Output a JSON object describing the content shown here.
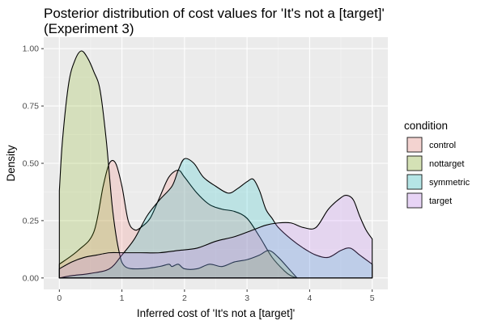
{
  "chart_data": {
    "type": "area",
    "title_lines": [
      "Posterior distribution of cost values for 'It's not a [target]'",
      "(Experiment 3)"
    ],
    "xlabel": "Inferred cost of 'It's not a [target]'",
    "ylabel": "Density",
    "xlim": [
      -0.25,
      5.25
    ],
    "ylim": [
      -0.05,
      1.05
    ],
    "x_ticks": [
      0,
      1,
      2,
      3,
      4,
      5
    ],
    "y_ticks": [
      0.0,
      0.25,
      0.5,
      0.75,
      1.0
    ],
    "x_tick_labels": [
      "0",
      "1",
      "2",
      "3",
      "4",
      "5"
    ],
    "y_tick_labels": [
      "0.00",
      "0.25",
      "0.50",
      "0.75",
      "1.00"
    ],
    "grid": true,
    "legend": {
      "title": "condition",
      "position": "right"
    },
    "series": [
      {
        "name": "control",
        "color": "#F8766D",
        "points": [
          [
            0,
            0.06
          ],
          [
            0.3,
            0.12
          ],
          [
            0.55,
            0.2
          ],
          [
            0.7,
            0.4
          ],
          [
            0.8,
            0.5
          ],
          [
            0.9,
            0.5
          ],
          [
            1.0,
            0.4
          ],
          [
            1.1,
            0.25
          ],
          [
            1.2,
            0.21
          ],
          [
            1.3,
            0.22
          ],
          [
            1.45,
            0.26
          ],
          [
            1.6,
            0.35
          ],
          [
            1.75,
            0.44
          ],
          [
            1.9,
            0.47
          ],
          [
            2.0,
            0.44
          ],
          [
            2.2,
            0.37
          ],
          [
            2.4,
            0.32
          ],
          [
            2.6,
            0.3
          ],
          [
            2.8,
            0.29
          ],
          [
            3.0,
            0.26
          ],
          [
            3.2,
            0.18
          ],
          [
            3.4,
            0.09
          ],
          [
            3.6,
            0.03
          ],
          [
            3.7,
            0.01
          ],
          [
            3.8,
            0.0
          ]
        ]
      },
      {
        "name": "nottarget",
        "color": "#7CAE00",
        "points": [
          [
            0,
            0.38
          ],
          [
            0.05,
            0.6
          ],
          [
            0.15,
            0.85
          ],
          [
            0.25,
            0.95
          ],
          [
            0.35,
            0.99
          ],
          [
            0.45,
            0.96
          ],
          [
            0.55,
            0.9
          ],
          [
            0.65,
            0.82
          ],
          [
            0.75,
            0.6
          ],
          [
            0.85,
            0.3
          ],
          [
            0.95,
            0.12
          ],
          [
            1.05,
            0.05
          ],
          [
            1.3,
            0.04
          ],
          [
            1.6,
            0.05
          ],
          [
            1.75,
            0.06
          ],
          [
            1.8,
            0.05
          ],
          [
            1.9,
            0.06
          ],
          [
            2.0,
            0.04
          ],
          [
            2.2,
            0.04
          ],
          [
            2.4,
            0.06
          ],
          [
            2.6,
            0.05
          ],
          [
            2.8,
            0.07
          ],
          [
            3.0,
            0.08
          ],
          [
            3.2,
            0.1
          ],
          [
            3.35,
            0.12
          ],
          [
            3.5,
            0.09
          ],
          [
            3.7,
            0.03
          ],
          [
            3.8,
            0.0
          ]
        ]
      },
      {
        "name": "symmetric",
        "color": "#00BFC4",
        "points": [
          [
            0,
            0.0
          ],
          [
            0.2,
            0.01
          ],
          [
            0.5,
            0.02
          ],
          [
            0.8,
            0.04
          ],
          [
            1.0,
            0.1
          ],
          [
            1.2,
            0.17
          ],
          [
            1.4,
            0.27
          ],
          [
            1.6,
            0.34
          ],
          [
            1.8,
            0.4
          ],
          [
            1.9,
            0.47
          ],
          [
            2.0,
            0.52
          ],
          [
            2.15,
            0.5
          ],
          [
            2.3,
            0.44
          ],
          [
            2.5,
            0.4
          ],
          [
            2.7,
            0.37
          ],
          [
            2.85,
            0.39
          ],
          [
            3.0,
            0.42
          ],
          [
            3.1,
            0.43
          ],
          [
            3.2,
            0.38
          ],
          [
            3.3,
            0.3
          ],
          [
            3.4,
            0.26
          ],
          [
            3.5,
            0.22
          ],
          [
            3.7,
            0.17
          ],
          [
            3.9,
            0.13
          ],
          [
            4.1,
            0.1
          ],
          [
            4.3,
            0.09
          ],
          [
            4.5,
            0.12
          ],
          [
            4.65,
            0.13
          ],
          [
            4.8,
            0.1
          ],
          [
            4.95,
            0.07
          ],
          [
            5.0,
            0.06
          ]
        ]
      },
      {
        "name": "target",
        "color": "#C77CFF",
        "points": [
          [
            0,
            0.04
          ],
          [
            0.2,
            0.07
          ],
          [
            0.4,
            0.09
          ],
          [
            0.6,
            0.1
          ],
          [
            0.8,
            0.11
          ],
          [
            1.0,
            0.11
          ],
          [
            1.3,
            0.11
          ],
          [
            1.6,
            0.11
          ],
          [
            1.9,
            0.12
          ],
          [
            2.2,
            0.13
          ],
          [
            2.5,
            0.16
          ],
          [
            2.8,
            0.18
          ],
          [
            3.1,
            0.21
          ],
          [
            3.3,
            0.23
          ],
          [
            3.5,
            0.24
          ],
          [
            3.7,
            0.24
          ],
          [
            3.9,
            0.22
          ],
          [
            4.1,
            0.22
          ],
          [
            4.3,
            0.3
          ],
          [
            4.5,
            0.35
          ],
          [
            4.6,
            0.36
          ],
          [
            4.7,
            0.34
          ],
          [
            4.8,
            0.27
          ],
          [
            4.9,
            0.21
          ],
          [
            5.0,
            0.17
          ]
        ]
      }
    ]
  }
}
